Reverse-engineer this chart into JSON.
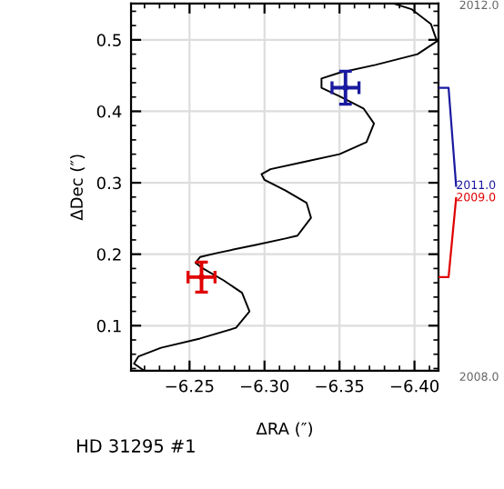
{
  "chart_data": {
    "type": "line",
    "xlabel": "ΔRA (″)",
    "ylabel": "ΔDec (″)",
    "xlim": [
      -6.211,
      -6.416
    ],
    "ylim": [
      0.037,
      0.551
    ],
    "xticks": [
      {
        "value": -6.25,
        "label": "−6.25"
      },
      {
        "value": -6.3,
        "label": "−6.30"
      },
      {
        "value": -6.35,
        "label": "−6.35"
      },
      {
        "value": -6.4,
        "label": "−6.40"
      }
    ],
    "yticks": [
      0.1,
      0.2,
      0.3,
      0.4,
      0.5
    ],
    "grid": true,
    "annotations": [
      "HD 31295 #1",
      "2012.0",
      "2011.0",
      "2009.0",
      "2008.0"
    ],
    "series": [
      {
        "color": "#000000",
        "x": [
          -6.219,
          -6.213,
          -6.216,
          -6.231,
          -6.257,
          -6.281,
          -6.29,
          -6.285,
          -6.273,
          -6.259,
          -6.254,
          -6.257,
          -6.269,
          -6.294,
          -6.314,
          -6.322,
          -6.331,
          -6.328,
          -6.314,
          -6.3,
          -6.298,
          -6.304,
          -6.326,
          -6.35,
          -6.368,
          -6.373,
          -6.366,
          -6.35,
          -6.338,
          -6.338,
          -6.35,
          -6.374,
          -6.402,
          -6.415,
          -6.411,
          -6.398,
          -6.386
        ],
        "values": [
          0.038,
          0.047,
          0.057,
          0.069,
          0.082,
          0.097,
          0.12,
          0.146,
          0.163,
          0.18,
          0.188,
          0.196,
          0.202,
          0.213,
          0.222,
          0.226,
          0.251,
          0.272,
          0.289,
          0.304,
          0.312,
          0.319,
          0.329,
          0.34,
          0.357,
          0.383,
          0.404,
          0.421,
          0.433,
          0.446,
          0.454,
          0.465,
          0.48,
          0.498,
          0.522,
          0.543,
          0.551
        ]
      },
      {
        "type": "scatter",
        "color": "#e00000",
        "x": [
          -6.258
        ],
        "values": [
          0.168
        ],
        "errors": [
          0.021
        ],
        "xerrors": [
          0.009
        ]
      },
      {
        "type": "scatter",
        "color": "#1a1aa0",
        "x": [
          -6.354
        ],
        "values": [
          0.433
        ],
        "errors": [
          0.023
        ],
        "xerrors": [
          0.009
        ]
      }
    ]
  }
}
